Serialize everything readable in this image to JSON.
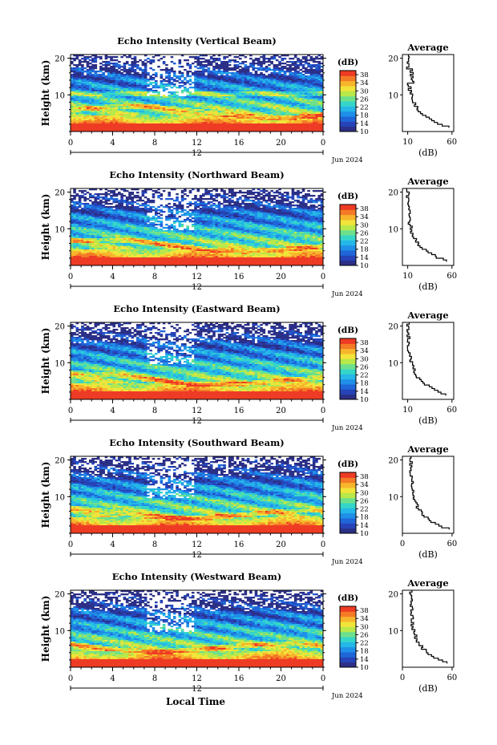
{
  "palette": [
    "#2b2f86",
    "#2643b8",
    "#1f66d8",
    "#1f8fe8",
    "#25b7e8",
    "#35d6c8",
    "#6ee08c",
    "#b8e84a",
    "#f2e43a",
    "#f7b52c",
    "#f47a26",
    "#ee3b24"
  ],
  "chart_data": [
    {
      "type": "heatmap",
      "title": "Echo Intensity (Vertical Beam)",
      "ylabel": "Height (km)",
      "yticks": [
        "20",
        "10"
      ],
      "xticks": [
        "0",
        "4",
        "8",
        "12",
        "16",
        "20",
        "0"
      ],
      "date_label": "12",
      "date_suffix": "Jun 2024",
      "colorbar": {
        "label": "(dB)",
        "ticks": [
          "38",
          "34",
          "30",
          "26",
          "22",
          "18",
          "14",
          "10"
        ],
        "range": [
          10,
          40
        ]
      },
      "profile": {
        "title": "Average",
        "xlabel": "(dB)",
        "xticks": [
          "10",
          "60"
        ],
        "yticks": [
          "20",
          "10"
        ]
      }
    },
    {
      "type": "heatmap",
      "title": "Echo Intensity (Northward Beam)",
      "ylabel": "Height (km)",
      "yticks": [
        "20",
        "10"
      ],
      "xticks": [
        "0",
        "4",
        "8",
        "12",
        "16",
        "20",
        "0"
      ],
      "date_label": "12",
      "date_suffix": "Jun 2024",
      "colorbar": {
        "label": "(dB)",
        "ticks": [
          "38",
          "34",
          "30",
          "26",
          "22",
          "18",
          "14",
          "10"
        ],
        "range": [
          10,
          40
        ]
      },
      "profile": {
        "title": "Average",
        "xlabel": "(dB)",
        "xticks": [
          "10",
          "60"
        ],
        "yticks": [
          "20",
          "10"
        ]
      }
    },
    {
      "type": "heatmap",
      "title": "Echo Intensity (Eastward Beam)",
      "ylabel": "Height (km)",
      "yticks": [
        "20",
        "10"
      ],
      "xticks": [
        "0",
        "4",
        "8",
        "12",
        "16",
        "20",
        "0"
      ],
      "date_label": "12",
      "date_suffix": "Jun 2024",
      "colorbar": {
        "label": "(dB)",
        "ticks": [
          "38",
          "34",
          "30",
          "26",
          "22",
          "18",
          "14",
          "10"
        ],
        "range": [
          10,
          40
        ]
      },
      "profile": {
        "title": "Average",
        "xlabel": "(dB)",
        "xticks": [
          "10",
          "60"
        ],
        "yticks": [
          "20",
          "10"
        ]
      }
    },
    {
      "type": "heatmap",
      "title": "Echo Intensity (Southward Beam)",
      "ylabel": "Height (km)",
      "yticks": [
        "20",
        "10"
      ],
      "xticks": [
        "0",
        "4",
        "8",
        "12",
        "16",
        "20",
        "0"
      ],
      "date_label": "12",
      "date_suffix": "Jun 2024",
      "colorbar": {
        "label": "(dB)",
        "ticks": [
          "38",
          "34",
          "30",
          "26",
          "22",
          "18",
          "14",
          "10"
        ],
        "range": [
          10,
          40
        ]
      },
      "profile": {
        "title": "Average",
        "xlabel": "(dB)",
        "xticks": [
          "0",
          "60"
        ],
        "yticks": [
          "20",
          "10"
        ]
      }
    },
    {
      "type": "heatmap",
      "title": "Echo Intensity (Westward Beam)",
      "ylabel": "Height (km)",
      "yticks": [
        "20",
        "10"
      ],
      "xticks": [
        "0",
        "4",
        "8",
        "12",
        "16",
        "20",
        "0"
      ],
      "date_label": "12",
      "date_suffix": "Jun 2024",
      "colorbar": {
        "label": "(dB)",
        "ticks": [
          "38",
          "34",
          "30",
          "26",
          "22",
          "18",
          "14",
          "10"
        ],
        "range": [
          10,
          40
        ]
      },
      "profile": {
        "title": "Average",
        "xlabel": "(dB)",
        "xticks": [
          "0",
          "60"
        ],
        "yticks": [
          "20",
          "10"
        ]
      }
    }
  ],
  "xlabel": "Local Time"
}
